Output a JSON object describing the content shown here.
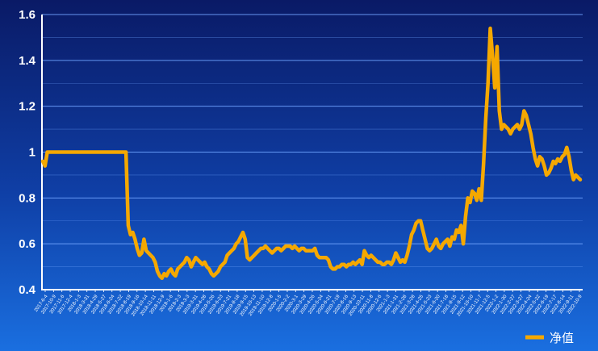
{
  "chart_data": {
    "type": "line",
    "title": "",
    "xlabel": "",
    "ylabel": "",
    "ylim": [
      0.4,
      1.6
    ],
    "yticks": [
      "1.6",
      "1.4",
      "1.2",
      "1",
      "0.8",
      "0.6",
      "0.4"
    ],
    "grid": true,
    "legend_position": "bottom-right",
    "colors": {
      "line": "#f5a800",
      "grid": "#6fa3ff",
      "axis": "#ffffff"
    },
    "x_tick_labels": [
      "2017-6-4",
      "2017-10-9",
      "2017-11-6",
      "2017-12-4",
      "2018-1-3",
      "2018-3-31",
      "2018-4-29",
      "2018-5-27",
      "2018-6-24",
      "2018-7-22",
      "2018-8-19",
      "2018-9-16",
      "2018-10-14",
      "2018-11-11",
      "2018-12-9",
      "2019-1-6",
      "2019-2-3",
      "2019-3-3",
      "2019-3-31",
      "2019-4-28",
      "2019-5-26",
      "2019-6-23",
      "2019-7-21",
      "2019-8-18",
      "2019-9-15",
      "2019-10-13",
      "2019-11-10",
      "2019-12-8",
      "2020-1-5",
      "2020-2-2",
      "2020-3-1",
      "2020-3-29",
      "2020-4-26",
      "2020-5-24",
      "2020-6-21",
      "2020-7-19",
      "2020-8-16",
      "2020-9-13",
      "2020-10-11",
      "2020-11-8",
      "2020-12-6",
      "2021-1-3",
      "2021-1-31",
      "2021-2-28",
      "2021-3-28",
      "2021-4-25",
      "2021-5-23",
      "2021-6-20",
      "2021-7-18",
      "2021-8-15",
      "2021-9-12",
      "2021-10-10",
      "2021-11-7",
      "2021-12-5",
      "2022-1-2",
      "2022-1-30",
      "2022-2-27",
      "2022-3-27",
      "2022-4-24",
      "2022-5-22",
      "2022-6-19",
      "2022-7-17",
      "2022-8-14",
      "2022-9-11",
      "2022-10-9"
    ],
    "series": [
      {
        "name": "净值",
        "values": [
          0.96,
          0.94,
          1.0,
          1.0,
          1.0,
          1.0,
          1.0,
          1.0,
          1.0,
          1.0,
          1.0,
          1.0,
          1.0,
          1.0,
          1.0,
          1.0,
          1.0,
          1.0,
          1.0,
          1.0,
          1.0,
          1.0,
          1.0,
          1.0,
          1.0,
          1.0,
          1.0,
          1.0,
          1.0,
          1.0,
          1.0,
          1.0,
          1.0,
          1.0,
          1.0,
          1.0,
          1.0,
          1.0,
          0.68,
          0.64,
          0.65,
          0.62,
          0.58,
          0.55,
          0.56,
          0.62,
          0.57,
          0.56,
          0.55,
          0.54,
          0.52,
          0.48,
          0.46,
          0.45,
          0.47,
          0.46,
          0.48,
          0.49,
          0.47,
          0.46,
          0.49,
          0.5,
          0.51,
          0.52,
          0.54,
          0.53,
          0.5,
          0.52,
          0.54,
          0.53,
          0.52,
          0.51,
          0.52,
          0.5,
          0.49,
          0.47,
          0.46,
          0.47,
          0.48,
          0.5,
          0.51,
          0.52,
          0.55,
          0.56,
          0.57,
          0.58,
          0.6,
          0.61,
          0.63,
          0.65,
          0.62,
          0.54,
          0.53,
          0.54,
          0.55,
          0.56,
          0.57,
          0.58,
          0.58,
          0.59,
          0.58,
          0.57,
          0.56,
          0.57,
          0.58,
          0.58,
          0.57,
          0.58,
          0.59,
          0.59,
          0.59,
          0.58,
          0.59,
          0.58,
          0.57,
          0.58,
          0.58,
          0.57,
          0.57,
          0.57,
          0.57,
          0.58,
          0.55,
          0.54,
          0.54,
          0.54,
          0.54,
          0.53,
          0.5,
          0.49,
          0.49,
          0.5,
          0.5,
          0.51,
          0.51,
          0.5,
          0.51,
          0.51,
          0.52,
          0.51,
          0.52,
          0.53,
          0.51,
          0.57,
          0.55,
          0.54,
          0.55,
          0.54,
          0.53,
          0.52,
          0.52,
          0.51,
          0.51,
          0.52,
          0.52,
          0.51,
          0.53,
          0.56,
          0.54,
          0.52,
          0.53,
          0.52,
          0.55,
          0.59,
          0.64,
          0.66,
          0.69,
          0.7,
          0.7,
          0.66,
          0.62,
          0.58,
          0.57,
          0.58,
          0.6,
          0.62,
          0.59,
          0.58,
          0.6,
          0.61,
          0.62,
          0.59,
          0.63,
          0.62,
          0.66,
          0.65,
          0.68,
          0.6,
          0.72,
          0.8,
          0.78,
          0.83,
          0.82,
          0.79,
          0.84,
          0.79,
          0.95,
          1.15,
          1.3,
          1.54,
          1.42,
          1.28,
          1.46,
          1.18,
          1.1,
          1.12,
          1.11,
          1.1,
          1.08,
          1.1,
          1.11,
          1.12,
          1.1,
          1.12,
          1.18,
          1.16,
          1.12,
          1.08,
          1.02,
          0.97,
          0.94,
          0.98,
          0.97,
          0.94,
          0.9,
          0.91,
          0.93,
          0.96,
          0.95,
          0.97,
          0.96,
          0.98,
          0.99,
          1.02,
          0.98,
          0.92,
          0.88,
          0.9,
          0.89,
          0.88
        ]
      }
    ]
  },
  "legend": {
    "label": "净值"
  }
}
